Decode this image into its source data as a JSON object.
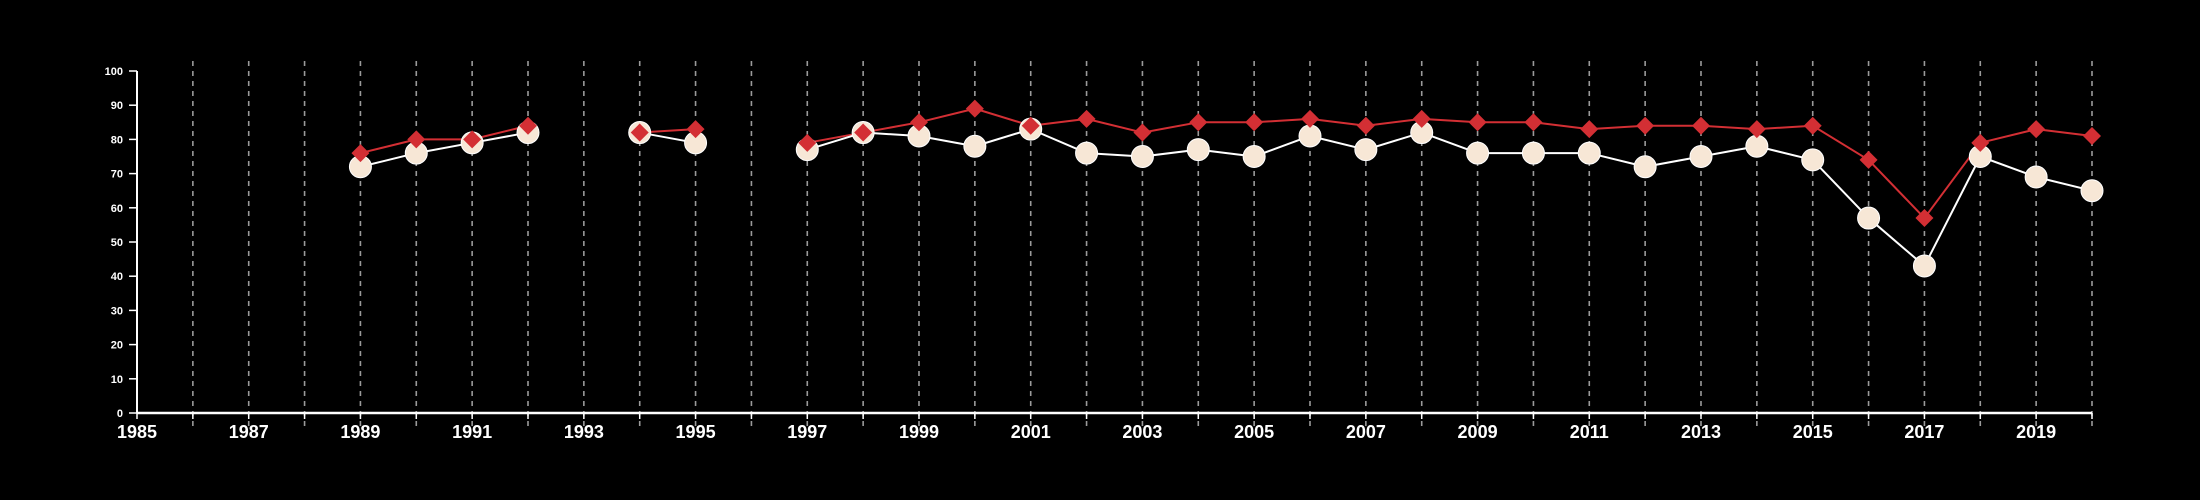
{
  "chart_data": {
    "type": "line",
    "xlim": [
      1985,
      2020
    ],
    "ylim": [
      0,
      100
    ],
    "x_ticks": [
      1985,
      1987,
      1989,
      1991,
      1993,
      1995,
      1997,
      1999,
      2001,
      2003,
      2005,
      2007,
      2009,
      2011,
      2013,
      2015,
      2017,
      2019
    ],
    "y_ticks": [
      0,
      10,
      20,
      30,
      40,
      50,
      60,
      70,
      80,
      90,
      100
    ],
    "grid": "vertical dashed at every year",
    "legend": "none",
    "series": [
      {
        "marker": "diamond",
        "color": "#d32f34",
        "points": [
          [
            1989,
            76
          ],
          [
            1990,
            80
          ],
          [
            1991,
            80
          ],
          [
            1992,
            84
          ],
          [
            1993,
            null
          ],
          [
            1994,
            82
          ],
          [
            1995,
            83
          ],
          [
            1996,
            null
          ],
          [
            1997,
            79
          ],
          [
            1998,
            82
          ],
          [
            1999,
            85
          ],
          [
            2000,
            89
          ],
          [
            2001,
            84
          ],
          [
            2002,
            86
          ],
          [
            2003,
            82
          ],
          [
            2004,
            85
          ],
          [
            2005,
            85
          ],
          [
            2006,
            86
          ],
          [
            2007,
            84
          ],
          [
            2008,
            86
          ],
          [
            2009,
            85
          ],
          [
            2010,
            85
          ],
          [
            2011,
            83
          ],
          [
            2012,
            84
          ],
          [
            2013,
            84
          ],
          [
            2014,
            83
          ],
          [
            2015,
            84
          ],
          [
            2016,
            74
          ],
          [
            2017,
            57
          ],
          [
            2018,
            79
          ],
          [
            2019,
            83
          ],
          [
            2020,
            81
          ]
        ]
      },
      {
        "marker": "circle",
        "color": "#ffffff",
        "marker_fill": "#f7e7d6",
        "points": [
          [
            1989,
            72
          ],
          [
            1990,
            76
          ],
          [
            1991,
            79
          ],
          [
            1992,
            82
          ],
          [
            1993,
            null
          ],
          [
            1994,
            82
          ],
          [
            1995,
            79
          ],
          [
            1996,
            null
          ],
          [
            1997,
            77
          ],
          [
            1998,
            82
          ],
          [
            1999,
            81
          ],
          [
            2000,
            78
          ],
          [
            2001,
            83
          ],
          [
            2002,
            76
          ],
          [
            2003,
            75
          ],
          [
            2004,
            77
          ],
          [
            2005,
            75
          ],
          [
            2006,
            81
          ],
          [
            2007,
            77
          ],
          [
            2008,
            82
          ],
          [
            2009,
            76
          ],
          [
            2010,
            76
          ],
          [
            2011,
            76
          ],
          [
            2012,
            72
          ],
          [
            2013,
            75
          ],
          [
            2014,
            78
          ],
          [
            2015,
            74
          ],
          [
            2016,
            57
          ],
          [
            2017,
            43
          ],
          [
            2018,
            75
          ],
          [
            2019,
            69
          ],
          [
            2020,
            65
          ]
        ]
      }
    ]
  }
}
